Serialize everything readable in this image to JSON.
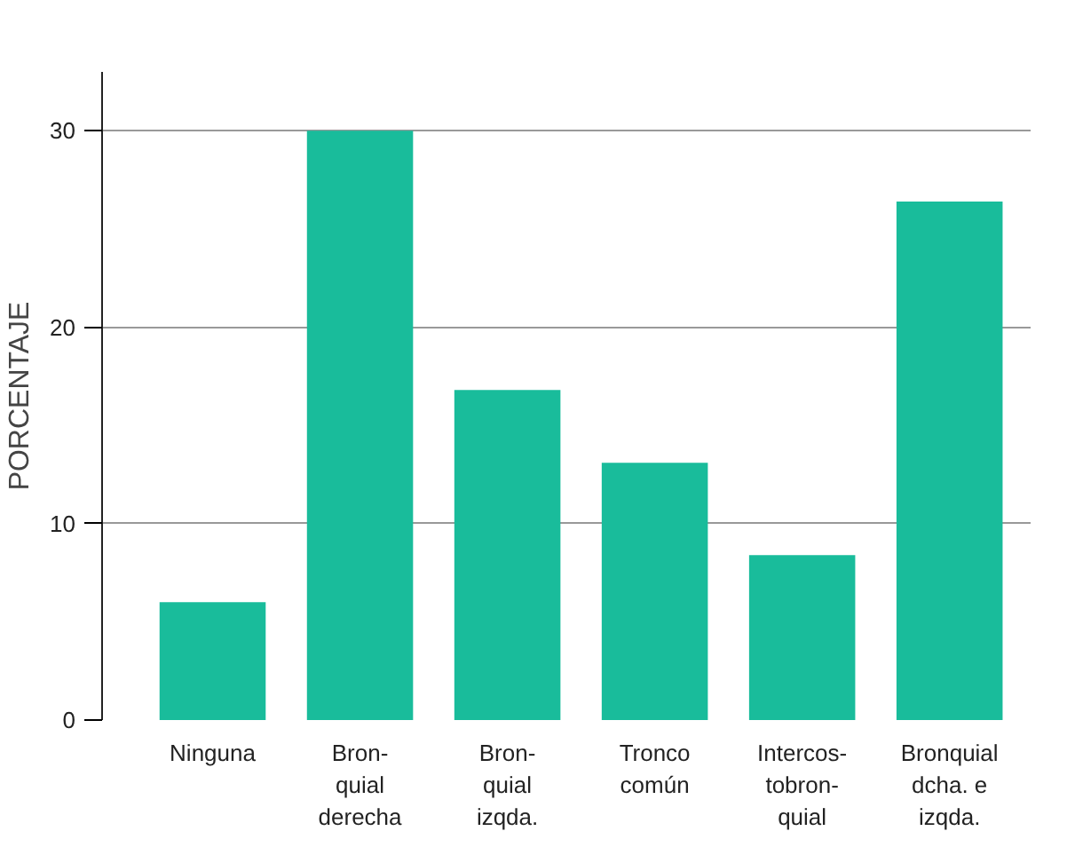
{
  "chart_data": {
    "type": "bar",
    "ylabel": "PORCENTAJE",
    "categories": [
      "Ninguna",
      "Bron-\nquial\nderecha",
      "Bron-\nquial\nizqda.",
      "Tronco\ncomún",
      "Intercos-\ntobron-\nquial",
      "Bronquial\ndcha. e\nizqda."
    ],
    "values": [
      6.0,
      30.0,
      16.8,
      13.1,
      8.4,
      26.4
    ],
    "color": "#19bc9b",
    "ylim": [
      0,
      33
    ],
    "yticks": [
      0,
      10,
      20,
      30
    ],
    "grid": "y"
  }
}
